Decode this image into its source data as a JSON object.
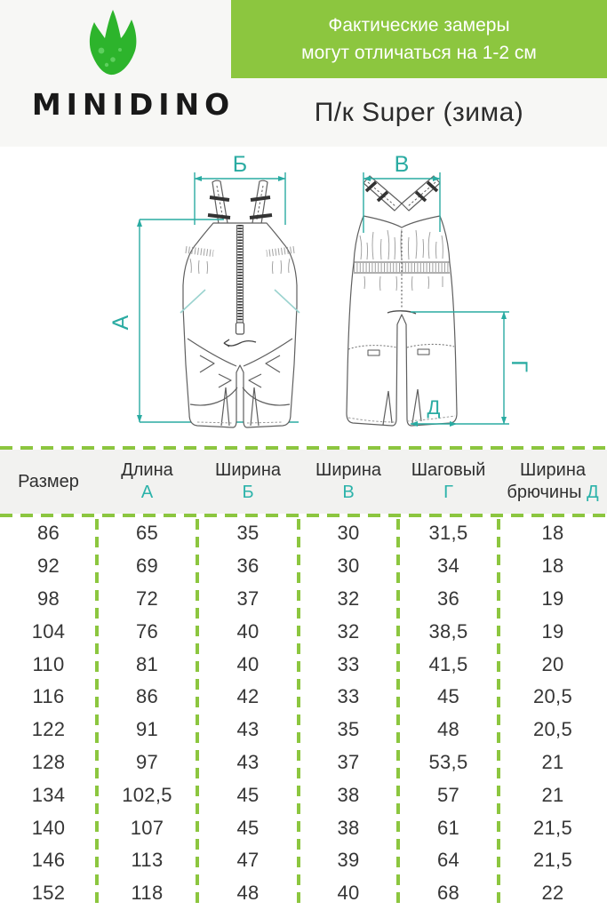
{
  "banner": {
    "lines": [
      "Фактические замеры",
      "могут отличаться на 1-2 см"
    ],
    "bg_color": "#8cc63f"
  },
  "brand": {
    "name": "MINIDINO",
    "logo_icon": "dino-footprint",
    "logo_color": "#2db42c"
  },
  "title": "П/к Super (зима)",
  "diagram": {
    "description": "overalls-front-and-back-technical-drawing",
    "labels": {
      "a": "А",
      "b": "Б",
      "v": "В",
      "g": "Г",
      "d": "Д"
    },
    "dimension_color": "#2aaba2"
  },
  "table": {
    "columns": [
      {
        "label": "Размер",
        "letter": ""
      },
      {
        "label": "Длина",
        "letter": "А"
      },
      {
        "label": "Ширина",
        "letter": "Б"
      },
      {
        "label": "Ширина",
        "letter": "В"
      },
      {
        "label": "Шаговый",
        "letter": "Г"
      },
      {
        "label": "Ширина брючины",
        "letter": "Д"
      }
    ],
    "rows": [
      [
        "86",
        "65",
        "35",
        "30",
        "31,5",
        "18"
      ],
      [
        "92",
        "69",
        "36",
        "30",
        "34",
        "18"
      ],
      [
        "98",
        "72",
        "37",
        "32",
        "36",
        "19"
      ],
      [
        "104",
        "76",
        "40",
        "32",
        "38,5",
        "19"
      ],
      [
        "110",
        "81",
        "40",
        "33",
        "41,5",
        "20"
      ],
      [
        "116",
        "86",
        "42",
        "33",
        "45",
        "20,5"
      ],
      [
        "122",
        "91",
        "43",
        "35",
        "48",
        "20,5"
      ],
      [
        "128",
        "97",
        "43",
        "37",
        "53,5",
        "21"
      ],
      [
        "134",
        "102,5",
        "45",
        "38",
        "57",
        "21"
      ],
      [
        "140",
        "107",
        "45",
        "38",
        "61",
        "21,5"
      ],
      [
        "146",
        "113",
        "47",
        "39",
        "64",
        "21,5"
      ],
      [
        "152",
        "118",
        "48",
        "40",
        "68",
        "22"
      ]
    ]
  },
  "colors": {
    "accent_green": "#8cc63f",
    "teal": "#2aaba2",
    "text": "#2c2c2c"
  }
}
